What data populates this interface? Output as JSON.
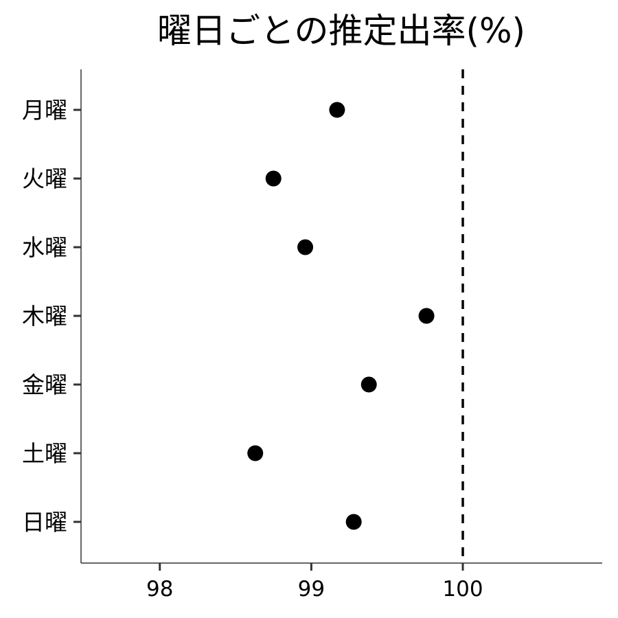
{
  "chart_data": {
    "type": "scatter",
    "title": "曜日ごとの推定出率(%)",
    "xlabel": "",
    "ylabel": "",
    "categories": [
      "月曜",
      "火曜",
      "水曜",
      "木曜",
      "金曜",
      "土曜",
      "日曜"
    ],
    "values": [
      99.17,
      98.75,
      98.96,
      99.76,
      99.38,
      98.63,
      99.28
    ],
    "xlim": [
      97.48,
      100.92
    ],
    "xticks": [
      "98",
      "99",
      "100"
    ],
    "reference_line": {
      "x": 100,
      "style": "dashed"
    },
    "grid": false,
    "legend": "none",
    "colors": {
      "points": "#000000",
      "reference_line": "#000000",
      "axis": "#333333"
    }
  }
}
